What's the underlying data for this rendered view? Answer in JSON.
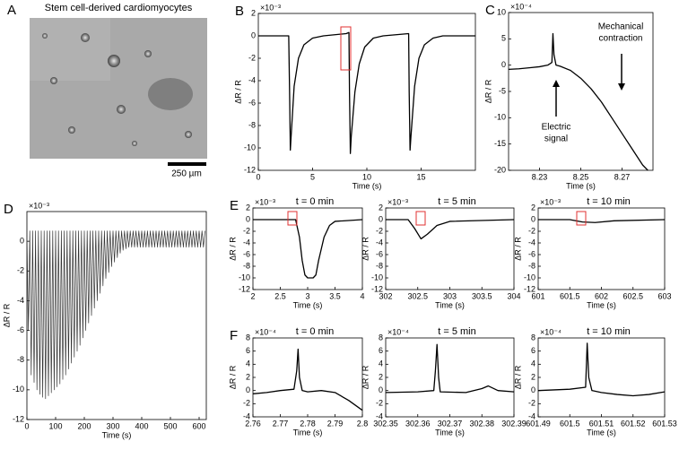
{
  "image_panel": {
    "panel": "A",
    "title": "Stem cell-derived cardiomyocytes",
    "scale_bar_label": "250 µm"
  },
  "annotations": [
    [
      "Mechanical",
      "contraction"
    ],
    [
      "Electric",
      "signal"
    ]
  ],
  "chart_data": [
    {
      "type": "line",
      "panel": "B",
      "y_exponent": "×10⁻³",
      "ylabel": "ΔR / R",
      "xlabel": "Time (s)",
      "color": "#000000",
      "xlim": [
        0,
        20
      ],
      "xticks": [
        0,
        5,
        10,
        15
      ],
      "ylim": [
        -12,
        2
      ],
      "yticks": [
        -12,
        -10,
        -8,
        -6,
        -4,
        -2,
        0,
        2
      ],
      "x": [
        0,
        2.8,
        2.88,
        2.95,
        3.02,
        3.3,
        3.7,
        4.2,
        5,
        6,
        8.1,
        8.35,
        8.4,
        8.48,
        8.56,
        8.9,
        9.3,
        9.8,
        10.6,
        11.5,
        13.85,
        13.9,
        13.98,
        14.06,
        14.4,
        14.8,
        15.3,
        16.1,
        17,
        20
      ],
      "values": [
        0,
        0,
        -5,
        -10.2,
        -9,
        -4.5,
        -2,
        -0.8,
        -0.2,
        0,
        0.2,
        0.3,
        -5,
        -10.5,
        -9,
        -5,
        -2.5,
        -1,
        -0.2,
        0,
        0.2,
        -5,
        -10.2,
        -9,
        -4.5,
        -2,
        -0.8,
        -0.2,
        0,
        0
      ]
    },
    {
      "type": "line",
      "panel": "C",
      "y_exponent": "×10⁻⁴",
      "ylabel": "ΔR / R",
      "xlabel": "Time (s)",
      "color": "#000000",
      "xlim": [
        8.215,
        8.285
      ],
      "xticks": [
        8.23,
        8.25,
        8.27
      ],
      "ylim": [
        -20,
        10
      ],
      "yticks": [
        -20,
        -15,
        -10,
        -5,
        0,
        5,
        10
      ],
      "x": [
        8.215,
        8.22,
        8.225,
        8.23,
        8.234,
        8.236,
        8.2365,
        8.237,
        8.238,
        8.24,
        8.245,
        8.25,
        8.255,
        8.26,
        8.265,
        8.27,
        8.275,
        8.28,
        8.2825
      ],
      "values": [
        -0.8,
        -0.7,
        -0.5,
        -0.3,
        0,
        0.5,
        6,
        2,
        0,
        -0.2,
        -1,
        -2.5,
        -4.5,
        -7,
        -10,
        -13,
        -16,
        -19,
        -20
      ]
    },
    {
      "type": "line",
      "panel": "D",
      "y_exponent": "×10⁻³",
      "ylabel": "ΔR / R",
      "xlabel": "Time (s)",
      "color": "#333333",
      "xlim": [
        0,
        625
      ],
      "xticks": [
        0,
        100,
        200,
        300,
        400,
        500,
        600
      ],
      "ylim": [
        -12,
        2
      ],
      "yticks": [
        -12,
        -10,
        -8,
        -6,
        -4,
        -2,
        0
      ],
      "x": [
        0,
        5,
        10,
        15,
        20,
        25,
        30,
        35,
        40,
        45,
        50,
        55,
        60,
        65,
        70,
        75,
        80,
        85,
        90,
        95,
        100,
        105,
        110,
        115,
        120,
        125,
        130,
        135,
        140,
        145,
        150,
        155,
        160,
        165,
        170,
        175,
        180,
        185,
        190,
        195,
        200,
        205,
        210,
        215,
        220,
        225,
        230,
        235,
        240,
        245,
        250,
        255,
        260,
        265,
        270,
        275,
        280,
        285,
        290,
        295,
        300,
        305,
        310,
        315,
        320,
        325,
        330,
        335,
        340,
        345,
        350,
        355,
        360,
        365,
        370,
        375,
        380,
        385,
        390,
        395,
        400,
        405,
        410,
        415,
        420,
        425,
        430,
        435,
        440,
        445,
        450,
        455,
        460,
        465,
        470,
        475,
        480,
        485,
        490,
        495,
        500,
        505,
        510,
        515,
        520,
        525,
        530,
        535,
        540,
        545,
        550,
        555,
        560,
        565,
        570,
        575,
        580,
        585,
        590,
        595,
        600,
        605,
        610,
        615,
        620
      ],
      "values": [
        0.7,
        -6,
        0.7,
        -9,
        0.7,
        -9.5,
        0.7,
        -10,
        0.7,
        -10.3,
        0.7,
        -10.5,
        0.7,
        -10.6,
        0.7,
        -10.4,
        0.7,
        -10.2,
        0.7,
        -10,
        0.7,
        -9.8,
        0.7,
        -9.6,
        0.7,
        -9.3,
        0.7,
        -9,
        0.7,
        -8.6,
        0.7,
        -8.2,
        0.7,
        -7.8,
        0.7,
        -7.4,
        0.7,
        -7,
        0.7,
        -6.5,
        0.7,
        -6,
        0.7,
        -5.5,
        0.7,
        -5,
        0.7,
        -4.5,
        0.7,
        -4,
        0.7,
        -3.5,
        0.7,
        -3,
        0.7,
        -2.5,
        0.7,
        -2.1,
        0.7,
        -1.7,
        0.7,
        -1.4,
        0.7,
        -1.1,
        0.7,
        -0.8,
        0.7,
        -0.6,
        0.7,
        -0.5,
        0.7,
        -0.4,
        0.7,
        -0.4,
        0.7,
        -0.4,
        0.7,
        -0.4,
        0.7,
        -0.4,
        0.7,
        -0.4,
        0.7,
        -0.4,
        0.7,
        -0.4,
        0.7,
        -0.4,
        0.7,
        -0.4,
        0.7,
        -0.4,
        0.7,
        -0.4,
        0.7,
        -0.4,
        0.7,
        -0.4,
        0.7,
        -0.4,
        0.7,
        -0.4,
        0.7,
        -0.4,
        0.7,
        -0.4,
        0.7,
        -0.4,
        0.7,
        -0.4,
        0.7,
        -0.4,
        0.7,
        -0.4,
        0.7,
        -0.4,
        0.7,
        -0.4,
        0.7,
        -0.4,
        0.7,
        -0.4,
        0.7,
        -0.4,
        0.7
      ]
    },
    {
      "type": "line",
      "panel": "E",
      "title": "t = 0 min",
      "y_exponent": "×10⁻³",
      "ylabel": "ΔR / R",
      "xlabel": "Time (s)",
      "color": "#000000",
      "xlim": [
        2,
        4
      ],
      "xticks": [
        2,
        2.5,
        3,
        3.5,
        4
      ],
      "ylim": [
        -12,
        2
      ],
      "yticks": [
        -12,
        -10,
        -8,
        -6,
        -4,
        -2,
        0,
        2
      ],
      "x": [
        2,
        2.78,
        2.85,
        2.9,
        2.95,
        3,
        3.1,
        3.15,
        3.2,
        3.3,
        3.4,
        3.5,
        4
      ],
      "values": [
        0,
        0,
        -3,
        -7,
        -9.5,
        -10,
        -10,
        -9.5,
        -7,
        -3,
        -1,
        -0.3,
        0
      ]
    },
    {
      "type": "line",
      "title": "t = 5 min",
      "y_exponent": "×10⁻³",
      "ylabel": "ΔR / R",
      "xlabel": "Time (s)",
      "color": "#000000",
      "xlim": [
        302,
        304
      ],
      "xticks": [
        302,
        302.5,
        303,
        303.5,
        304
      ],
      "ylim": [
        -12,
        2
      ],
      "yticks": [
        -12,
        -10,
        -8,
        -6,
        -4,
        -2,
        0,
        2
      ],
      "x": [
        302,
        302.35,
        302.45,
        302.55,
        302.65,
        302.8,
        303,
        304
      ],
      "values": [
        0,
        0,
        -1.5,
        -3.3,
        -2.5,
        -1,
        -0.3,
        0
      ]
    },
    {
      "type": "line",
      "title": "t = 10 min",
      "y_exponent": "×10⁻³",
      "ylabel": "ΔR / R",
      "xlabel": "Time (s)",
      "color": "#000000",
      "xlim": [
        601,
        603
      ],
      "xticks": [
        601,
        601.5,
        602,
        602.5,
        603
      ],
      "ylim": [
        -12,
        2
      ],
      "yticks": [
        -12,
        -10,
        -8,
        -6,
        -4,
        -2,
        0,
        2
      ],
      "x": [
        601,
        601.5,
        601.7,
        601.9,
        602.2,
        603
      ],
      "values": [
        0,
        0,
        -0.4,
        -0.5,
        -0.2,
        0
      ]
    },
    {
      "type": "line",
      "panel": "F",
      "title": "t = 0 min",
      "y_exponent": "×10⁻⁴",
      "ylabel": "ΔR / R",
      "xlabel": "Time (s)",
      "color": "#000000",
      "xlim": [
        2.76,
        2.8
      ],
      "xticks": [
        2.76,
        2.77,
        2.78,
        2.79,
        2.8
      ],
      "ylim": [
        -4,
        8
      ],
      "yticks": [
        -4,
        -2,
        0,
        2,
        4,
        6,
        8
      ],
      "x": [
        2.76,
        2.765,
        2.77,
        2.775,
        2.776,
        2.7765,
        2.777,
        2.778,
        2.78,
        2.785,
        2.79,
        2.795,
        2.8
      ],
      "values": [
        -0.5,
        -0.3,
        0,
        0.2,
        3,
        6.3,
        2,
        0,
        -0.2,
        0,
        -0.3,
        -1.5,
        -3
      ]
    },
    {
      "type": "line",
      "title": "t = 5 min",
      "y_exponent": "×10⁻⁴",
      "ylabel": "ΔR / R",
      "xlabel": "Time (s)",
      "color": "#000000",
      "xlim": [
        302.35,
        302.39
      ],
      "xticks": [
        302.35,
        302.36,
        302.37,
        302.38,
        302.39
      ],
      "ylim": [
        -4,
        8
      ],
      "yticks": [
        -4,
        -2,
        0,
        2,
        4,
        6,
        8
      ],
      "x": [
        302.35,
        302.36,
        302.365,
        302.3655,
        302.366,
        302.3665,
        302.367,
        302.375,
        302.38,
        302.382,
        302.385,
        302.39
      ],
      "values": [
        -0.3,
        -0.2,
        0,
        3,
        7,
        2,
        -0.2,
        -0.3,
        0.3,
        0.7,
        0,
        -0.2
      ]
    },
    {
      "type": "line",
      "title": "t = 10 min",
      "y_exponent": "×10⁻⁴",
      "ylabel": "ΔR / R",
      "xlabel": "Time (s)",
      "color": "#000000",
      "xlim": [
        601.49,
        601.53
      ],
      "xticks": [
        601.49,
        601.5,
        601.51,
        601.52,
        601.53
      ],
      "ylim": [
        -4,
        8
      ],
      "yticks": [
        -4,
        -2,
        0,
        2,
        4,
        6,
        8
      ],
      "x": [
        601.49,
        601.5,
        601.505,
        601.5055,
        601.506,
        601.507,
        601.51,
        601.515,
        601.52,
        601.525,
        601.53
      ],
      "values": [
        0,
        0.2,
        0.5,
        7.2,
        2,
        0,
        -0.3,
        -0.6,
        -0.8,
        -0.6,
        -0.2
      ]
    }
  ]
}
